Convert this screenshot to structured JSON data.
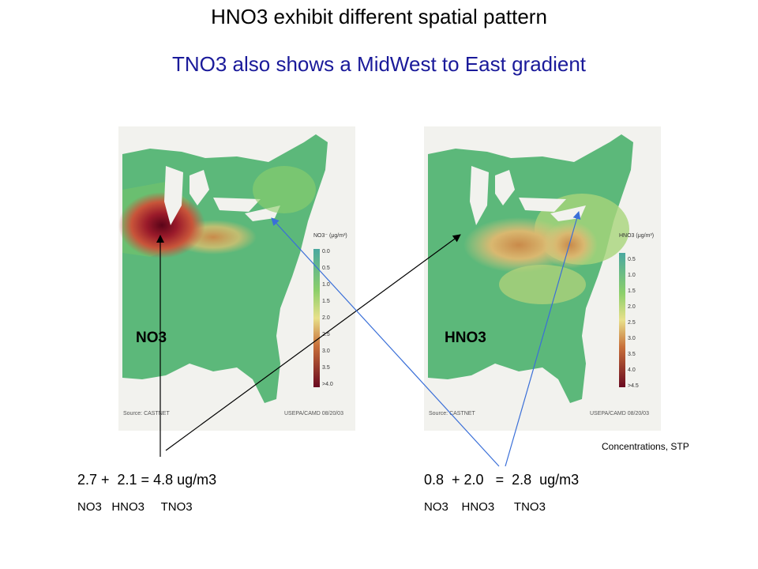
{
  "title": "HNO3 exhibit different spatial pattern",
  "subtitle": "TNO3 also shows a MidWest to East gradient",
  "maps": [
    {
      "label": "NO3",
      "legend_title": "NO3⁻ (μg/m³)",
      "legend_ticks": [
        "0.0",
        "0.5",
        "1.0",
        "1.5",
        "2.0",
        "2.5",
        "3.0",
        "3.5",
        ">4.0"
      ],
      "source": "Source: CASTNET",
      "agency": "USEPA/CAMD 08/20/03"
    },
    {
      "label": "HNO3",
      "legend_title": "HNO3 (μg/m³)",
      "legend_ticks": [
        "0.5",
        "1.0",
        "1.5",
        "2.0",
        "2.5",
        "3.0",
        "3.5",
        "4.0",
        ">4.5"
      ],
      "source": "Source: CASTNET",
      "agency": "USEPA/CAMD 08/20/03"
    }
  ],
  "note": "Concentrations, STP",
  "left_equation": {
    "text": "2.7 +  2.1 = 4.8 ug/m3",
    "labels": "NO3   HNO3     TNO3"
  },
  "right_equation": {
    "text": "0.8  + 2.0   =  2.8  ug/m3",
    "labels": "NO3    HNO3      TNO3"
  },
  "colors": {
    "title": "#000000",
    "subtitle": "#1a1a9a",
    "arrow_black": "#000000",
    "arrow_blue": "#3a6fd8",
    "map_green": "#5cb87a",
    "map_high": "#7a0a2a"
  }
}
